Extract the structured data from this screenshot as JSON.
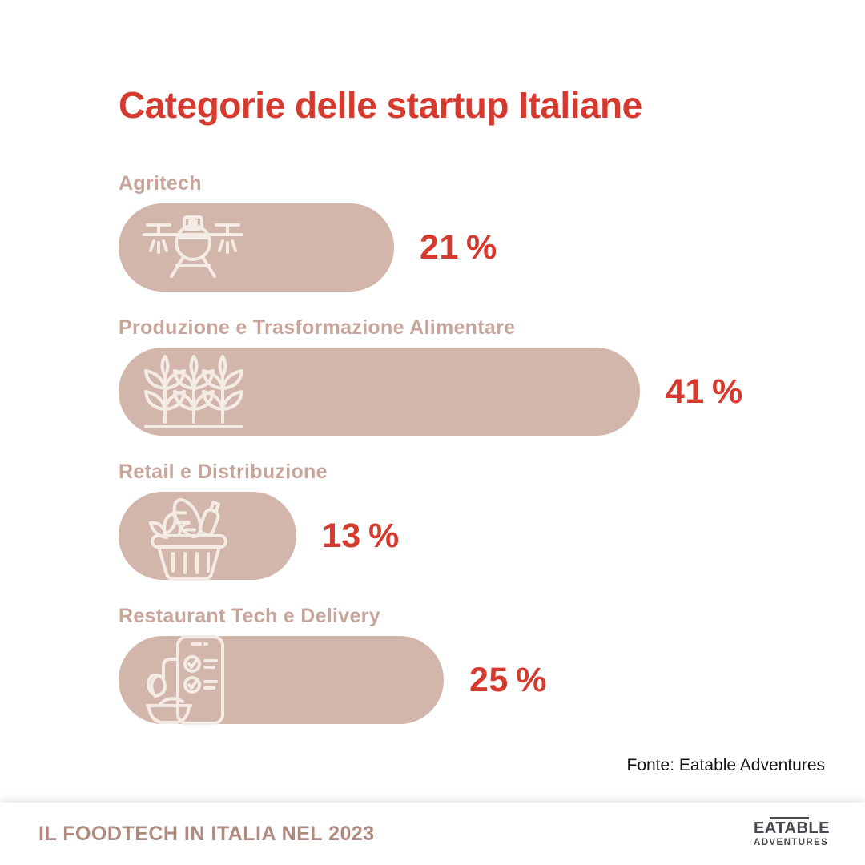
{
  "title": "Categorie delle startup Italiane",
  "source_note": "Fonte: Eatable Adventures",
  "footer": {
    "caption": "IL FOODTECH IN ITALIA NEL 2023",
    "logo_line1": "EATABLE",
    "logo_line2": "ADVENTURES"
  },
  "colors": {
    "accent_red": "#d63a2f",
    "bar_fill": "#d2b5ab",
    "category_label": "#c8a59b",
    "footer_caption": "#b08a7e",
    "logo": "#45484c",
    "icon_stroke": "#f5ebe5",
    "background": "#ffffff"
  },
  "chart_data": {
    "type": "bar",
    "orientation": "horizontal",
    "title": "Categorie delle startup Italiane",
    "categories": [
      "Agritech",
      "Produzione e Trasformazione Alimentare",
      "Retail e Distribuzione",
      "Restaurant Tech e Delivery"
    ],
    "values": [
      21,
      41,
      13,
      25
    ],
    "value_labels": [
      "21 %",
      "41 %",
      "13 %",
      "25 %"
    ],
    "unit": "%",
    "xlim": [
      0,
      45
    ],
    "icons": [
      "agriculture-drone-icon",
      "crops-plants-icon",
      "grocery-basket-icon",
      "food-delivery-app-icon"
    ],
    "source": "Fonte: Eatable Adventures",
    "grid": false,
    "legend": false
  }
}
